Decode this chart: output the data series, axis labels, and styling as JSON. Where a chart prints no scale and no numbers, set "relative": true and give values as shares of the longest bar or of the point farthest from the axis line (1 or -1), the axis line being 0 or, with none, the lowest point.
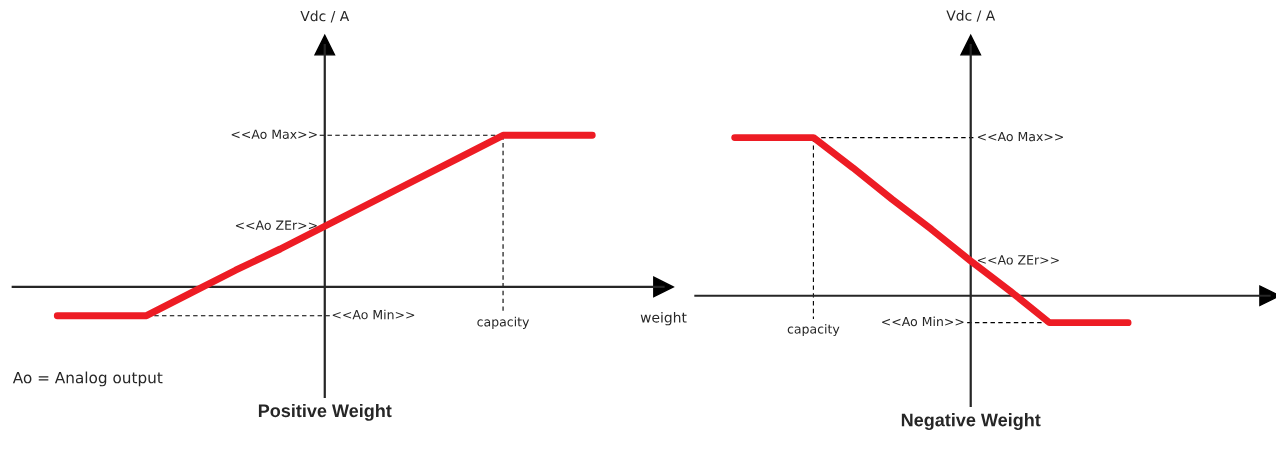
{
  "chart_data": [
    {
      "type": "line",
      "title": "Positive Weight",
      "xlabel": "weight",
      "ylabel": "Vdc / A",
      "relative": true,
      "legend": false,
      "marker": "none",
      "categories": [
        null,
        null,
        null,
        null,
        null,
        null,
        null,
        null,
        null,
        null,
        null,
        null,
        null
      ],
      "series": [
        {
          "color": "#ed1c24",
          "values": [
            -0.19,
            -0.19,
            -0.19,
            -0.04,
            0.11,
            0.25,
            0.4,
            0.55,
            0.7,
            0.85,
            1,
            1,
            1
          ]
        }
      ],
      "annotations": [
        "<<Ao Max>>",
        "<<Ao ZEr>>",
        "<<Ao Min>>",
        "capacity",
        "Ao = Analog output"
      ]
    },
    {
      "type": "line",
      "title": "Negative Weight",
      "ylabel": "Vdc / A",
      "relative": true,
      "legend": false,
      "marker": "none",
      "categories": [
        null,
        null,
        null,
        null,
        null,
        null,
        null,
        null,
        null,
        null,
        null,
        null,
        null
      ],
      "series": [
        {
          "color": "#ed1c24",
          "values": [
            1,
            1,
            1,
            0.81,
            0.61,
            0.42,
            0.22,
            0.03,
            -0.17,
            -0.17,
            -0.17,
            null,
            null
          ]
        }
      ],
      "annotations": [
        "<<Ao Max>>",
        "<<Ao ZEr>>",
        "<<Ao Min>>",
        "capacity"
      ]
    }
  ]
}
